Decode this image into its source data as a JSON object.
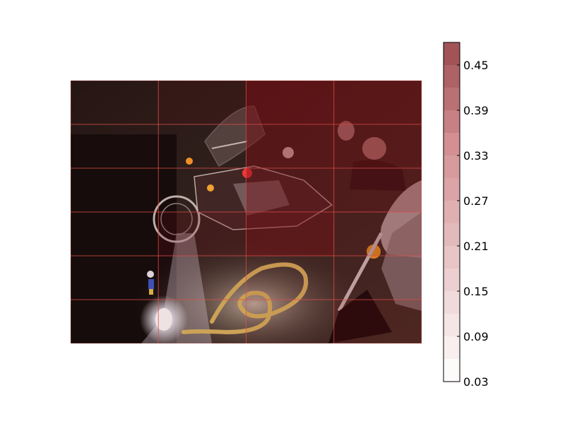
{
  "image": {
    "subject": "night-photo-motorcycles-with-saliency-overlay",
    "overlay_colormap": "white-to-dark-red",
    "colors": {
      "background": "#ffffff",
      "overlay_high": "#7a0f14",
      "overlay_mid": "#c46a6e",
      "overlay_low": "#ffffff",
      "cell_border": "#e0504a",
      "lamp_glow": "#f4f6ff",
      "hose": "#d8b760"
    }
  },
  "colorbar": {
    "ticks": [
      {
        "label": "0.45",
        "value": 0.45
      },
      {
        "label": "0.39",
        "value": 0.39
      },
      {
        "label": "0.33",
        "value": 0.33
      },
      {
        "label": "0.27",
        "value": 0.27
      },
      {
        "label": "0.21",
        "value": 0.21
      },
      {
        "label": "0.15",
        "value": 0.15
      },
      {
        "label": "0.09",
        "value": 0.09
      },
      {
        "label": "0.03",
        "value": 0.03
      }
    ],
    "vmin": 0.03,
    "vmax": 0.48
  },
  "overlay_cells": [
    {
      "value": 0.05
    },
    {
      "value": 0.12
    },
    {
      "value": 0.46
    },
    {
      "value": 0.44
    },
    {
      "value": 0.04
    },
    {
      "value": 0.04
    },
    {
      "value": 0.4
    },
    {
      "value": 0.38
    },
    {
      "value": 0.03
    },
    {
      "value": 0.03
    },
    {
      "value": 0.34
    },
    {
      "value": 0.3
    },
    {
      "value": 0.03
    },
    {
      "value": 0.18
    },
    {
      "value": 0.42
    },
    {
      "value": 0.22
    },
    {
      "value": 0.03
    },
    {
      "value": 0.06
    },
    {
      "value": 0.1
    },
    {
      "value": 0.14
    },
    {
      "value": 0.03
    },
    {
      "value": 0.05
    },
    {
      "value": 0.08
    },
    {
      "value": 0.2
    }
  ]
}
